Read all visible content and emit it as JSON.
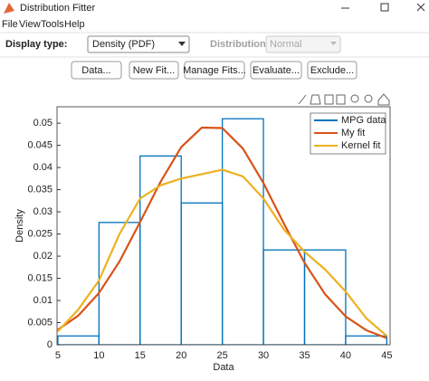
{
  "window": {
    "title": "Distribution Fitter",
    "menu": [
      "File",
      "View",
      "Tools",
      "Help"
    ],
    "display_type_label": "Display type:",
    "display_type": "Density (PDF)",
    "distribution_label": "Distribution:",
    "distribution": "Normal",
    "buttons": [
      "Data...",
      "New Fit...",
      "Manage Fits...",
      "Evaluate...",
      "Exclude..."
    ]
  },
  "chart_data": {
    "type": "histogram",
    "xlabel": "Data",
    "ylabel": "Density",
    "bins": [
      5,
      10,
      15,
      20,
      25,
      30,
      35,
      40,
      45
    ],
    "xlim": [
      4.9,
      45.4
    ],
    "ylim": [
      0,
      0.0537
    ],
    "xticks": [
      5,
      10,
      15,
      20,
      25,
      30,
      35,
      40,
      45
    ],
    "yticks": [
      0,
      0.005,
      0.01,
      0.015,
      0.02,
      0.025,
      0.03,
      0.035,
      0.04,
      0.045,
      0.05
    ],
    "legend": "upper right",
    "series": [
      {
        "name": "MPG data",
        "type": "histogram",
        "color": "#0072bd",
        "values": [
          0.002,
          0.0276,
          0.0426,
          0.032,
          0.051,
          0.0214,
          0.0214,
          0.002
        ]
      },
      {
        "name": "My fit",
        "type": "line",
        "color": "#d95319",
        "x": [
          5,
          7.5,
          10,
          12.5,
          15,
          17.5,
          20,
          22.5,
          25,
          27.5,
          30,
          32.5,
          35,
          37.5,
          40,
          42.5,
          45
        ],
        "values": [
          0.0034,
          0.0066,
          0.0117,
          0.0188,
          0.0277,
          0.0368,
          0.0446,
          0.049,
          0.0489,
          0.0443,
          0.0365,
          0.0273,
          0.0185,
          0.0114,
          0.0064,
          0.0033,
          0.0015
        ]
      },
      {
        "name": "Kernel fit",
        "type": "line",
        "color": "#edb120",
        "x": [
          5,
          7.5,
          10,
          12.5,
          15,
          17.5,
          20,
          22.5,
          25,
          27.5,
          30,
          32.5,
          35,
          37.5,
          40,
          42.5,
          45
        ],
        "values": [
          0.003,
          0.008,
          0.0145,
          0.025,
          0.033,
          0.036,
          0.0375,
          0.0385,
          0.0395,
          0.038,
          0.033,
          0.026,
          0.021,
          0.017,
          0.012,
          0.006,
          0.002
        ]
      }
    ]
  }
}
